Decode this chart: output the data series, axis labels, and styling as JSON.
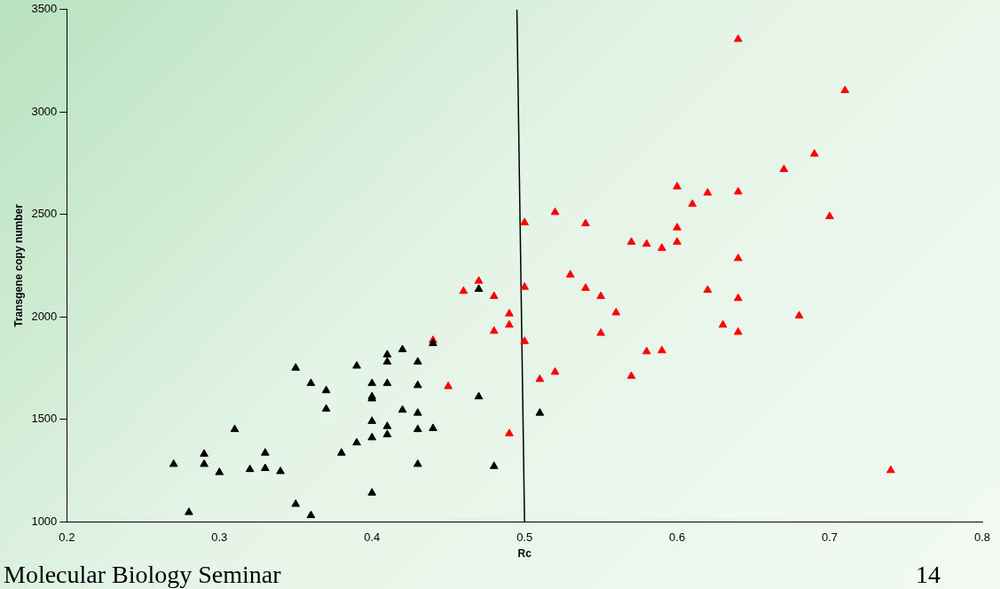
{
  "chart_data": {
    "type": "scatter",
    "xlabel": "Rc",
    "ylabel": "Transgene copy number",
    "xlim": [
      0.2,
      0.8
    ],
    "xticks": [
      0.2,
      0.3,
      0.4,
      0.5,
      0.6,
      0.7,
      0.8
    ],
    "ylim": [
      1000,
      3500
    ],
    "yticks": [
      1000,
      1500,
      2000,
      2500,
      3000,
      3500
    ],
    "grid": false,
    "legend": false,
    "marker": "triangle",
    "annotations": [
      "Molecular Biology Seminar",
      "14"
    ],
    "series": [
      {
        "type": "scatter",
        "color": "#000000",
        "x": [
          0.27,
          0.28,
          0.29,
          0.29,
          0.3,
          0.31,
          0.32,
          0.33,
          0.33,
          0.34,
          0.35,
          0.35,
          0.36,
          0.36,
          0.37,
          0.37,
          0.38,
          0.39,
          0.39,
          0.4,
          0.4,
          0.4,
          0.4,
          0.4,
          0.4,
          0.41,
          0.41,
          0.41,
          0.41,
          0.41,
          0.42,
          0.42,
          0.43,
          0.43,
          0.43,
          0.43,
          0.43,
          0.44,
          0.44,
          0.47,
          0.47,
          0.48,
          0.51
        ],
        "values": [
          1280,
          1045,
          1330,
          1280,
          1240,
          1450,
          1255,
          1335,
          1260,
          1245,
          1750,
          1085,
          1675,
          1030,
          1640,
          1550,
          1335,
          1760,
          1385,
          1675,
          1610,
          1600,
          1490,
          1410,
          1140,
          1815,
          1780,
          1675,
          1465,
          1425,
          1840,
          1545,
          1780,
          1665,
          1530,
          1450,
          1280,
          1870,
          1455,
          2135,
          1610,
          1270,
          1530
        ]
      },
      {
        "type": "scatter",
        "color": "#ff0000",
        "x": [
          0.44,
          0.45,
          0.46,
          0.47,
          0.48,
          0.48,
          0.49,
          0.49,
          0.49,
          0.5,
          0.5,
          0.5,
          0.51,
          0.52,
          0.52,
          0.53,
          0.54,
          0.54,
          0.55,
          0.55,
          0.56,
          0.57,
          0.57,
          0.58,
          0.58,
          0.59,
          0.59,
          0.6,
          0.6,
          0.6,
          0.61,
          0.62,
          0.62,
          0.63,
          0.64,
          0.64,
          0.64,
          0.64,
          0.64,
          0.67,
          0.68,
          0.69,
          0.7,
          0.71,
          0.74
        ],
        "values": [
          1885,
          1660,
          2125,
          2175,
          2100,
          1930,
          2015,
          1960,
          1430,
          2460,
          2145,
          1880,
          1695,
          2510,
          1730,
          2205,
          2455,
          2140,
          2100,
          1920,
          2020,
          2365,
          1710,
          2355,
          1830,
          2335,
          1835,
          2635,
          2435,
          2365,
          2550,
          2605,
          2130,
          1960,
          3355,
          2610,
          2285,
          2090,
          1925,
          2720,
          2005,
          2795,
          2490,
          3105,
          1250
        ]
      },
      {
        "type": "line",
        "color": "#000000",
        "marker": "none",
        "line_style": "solid",
        "x": [
          0.495,
          0.5
        ],
        "values": [
          3500,
          1000
        ]
      }
    ]
  }
}
